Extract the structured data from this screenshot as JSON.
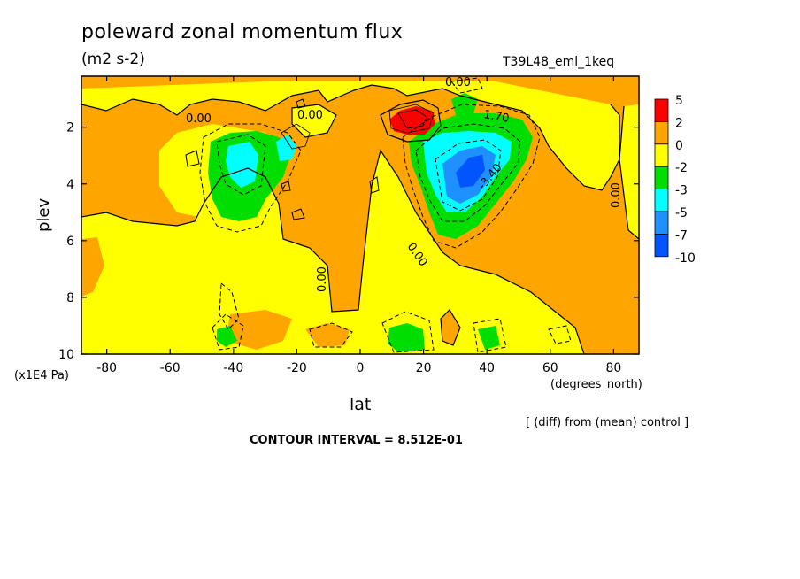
{
  "chart_data": {
    "type": "heatmap",
    "title": "poleward zonal momentum flux",
    "units": "(m2 s-2)",
    "run_label": "T39L48_eml_1keq",
    "xlabel": "lat",
    "x_unit": "(degrees_north)",
    "ylabel": "plev",
    "y_unit": "(x1E4 Pa)",
    "x_ticks": [
      -80,
      -60,
      -40,
      -20,
      0,
      20,
      40,
      60,
      80
    ],
    "y_ticks": [
      2,
      4,
      6,
      8,
      10
    ],
    "xlim": [
      -88,
      88
    ],
    "ylim": [
      10,
      0.2
    ],
    "contour_labels": [
      "0.00",
      "0.00",
      "0.00",
      "0.00",
      "0.00",
      "0.00",
      "1.70",
      "-3.40"
    ],
    "colorbar": {
      "levels": [
        "5",
        "2",
        "0",
        "-2",
        "-3",
        "-5",
        "-7",
        "-10"
      ],
      "colors": [
        "#ff0000",
        "#ffa500",
        "#ffff00",
        "#00dd00",
        "#00ffff",
        "#1e90ff",
        "#0055ff"
      ]
    },
    "notes": [
      "[ (diff) from (mean) control ]"
    ],
    "contour_interval": "CONTOUR INTERVAL = 8.512E-01"
  }
}
